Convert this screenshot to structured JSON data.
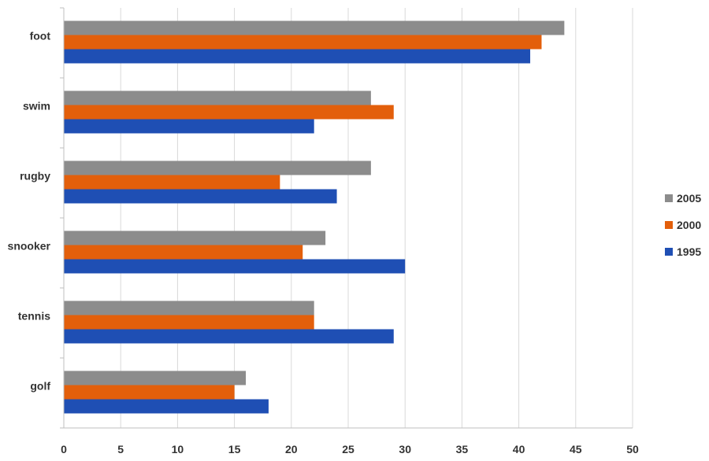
{
  "chart_data": {
    "type": "bar",
    "orientation": "horizontal",
    "categories": [
      "foot",
      "swim",
      "rugby",
      "snooker",
      "tennis",
      "golf"
    ],
    "series": [
      {
        "name": "2005",
        "color": "#8c8c8c",
        "values": [
          44,
          27,
          27,
          23,
          22,
          16
        ]
      },
      {
        "name": "2000",
        "color": "#e35f0b",
        "values": [
          42,
          29,
          19,
          21,
          22,
          15
        ]
      },
      {
        "name": "1995",
        "color": "#1f4fb4",
        "values": [
          41,
          22,
          24,
          30,
          29,
          18
        ]
      }
    ],
    "xlim": [
      0,
      50
    ],
    "xticks": [
      0,
      5,
      10,
      15,
      20,
      25,
      30,
      35,
      40,
      45,
      50
    ],
    "grid": true,
    "legend_position": "right",
    "legend_order": [
      "2005",
      "2000",
      "1995"
    ],
    "title": "",
    "xlabel": "",
    "ylabel": ""
  }
}
